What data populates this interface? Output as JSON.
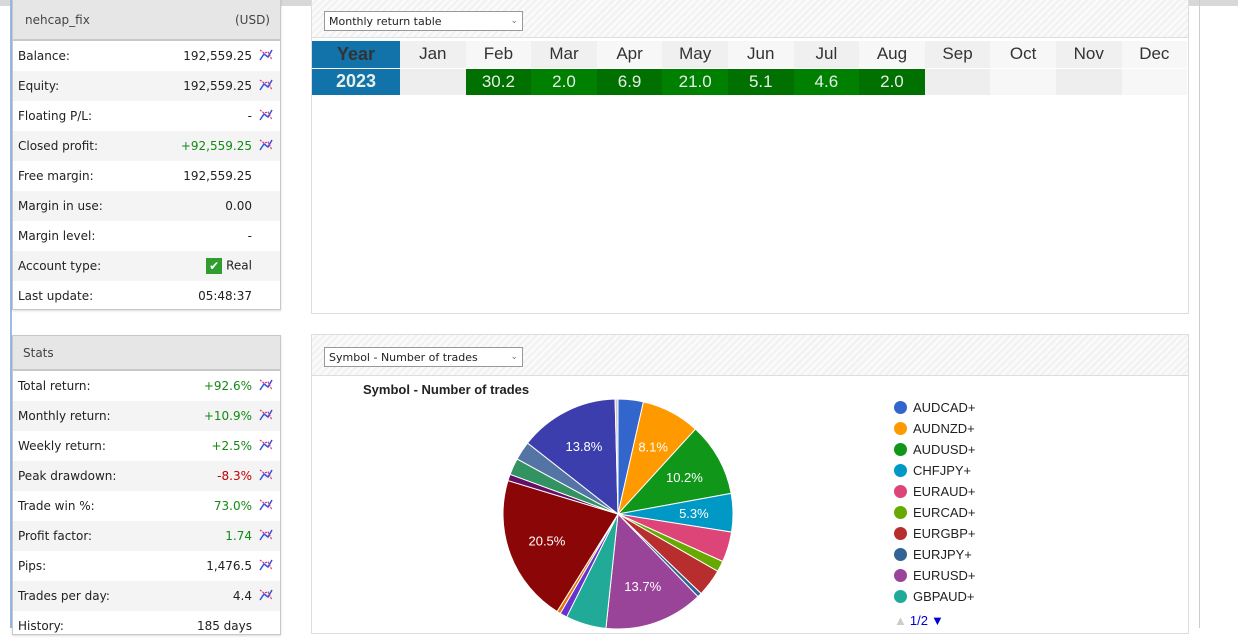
{
  "account": {
    "name": "nehcap_fix",
    "currency": "(USD)",
    "rows": [
      {
        "label": "Balance:",
        "value": "192,559.25",
        "color": "",
        "chart": true
      },
      {
        "label": "Equity:",
        "value": "192,559.25",
        "color": "",
        "chart": true
      },
      {
        "label": "Floating P/L:",
        "value": "-",
        "color": "",
        "chart": true
      },
      {
        "label": "Closed profit:",
        "value": "+92,559.25",
        "color": "green",
        "chart": true
      },
      {
        "label": "Free margin:",
        "value": "192,559.25",
        "color": "",
        "chart": false
      },
      {
        "label": "Margin in use:",
        "value": "0.00",
        "color": "",
        "chart": false
      },
      {
        "label": "Margin level:",
        "value": "-",
        "color": "",
        "chart": false
      },
      {
        "label": "Account type:",
        "value": "Real",
        "color": "",
        "chart": false,
        "check": true
      },
      {
        "label": "Last update:",
        "value": "05:48:37",
        "color": "",
        "chart": false
      }
    ]
  },
  "stats": {
    "title": "Stats",
    "rows": [
      {
        "label": "Total return:",
        "value": "+92.6%",
        "color": "green",
        "chart": true
      },
      {
        "label": "Monthly return:",
        "value": "+10.9%",
        "color": "green",
        "chart": true
      },
      {
        "label": "Weekly return:",
        "value": "+2.5%",
        "color": "green",
        "chart": true
      },
      {
        "label": "Peak drawdown:",
        "value": "-8.3%",
        "color": "red",
        "chart": true
      },
      {
        "label": "Trade win %:",
        "value": "73.0%",
        "color": "green",
        "chart": true
      },
      {
        "label": "Profit factor:",
        "value": "1.74",
        "color": "green",
        "chart": true
      },
      {
        "label": "Pips:",
        "value": "1,476.5",
        "color": "",
        "chart": true
      },
      {
        "label": "Trades per day:",
        "value": "4.4",
        "color": "",
        "chart": true
      },
      {
        "label": "History:",
        "value": "185 days",
        "color": "",
        "chart": false
      }
    ]
  },
  "monthly": {
    "select": "Monthly return table",
    "year_header": "Year",
    "months": [
      "Jan",
      "Feb",
      "Mar",
      "Apr",
      "May",
      "Jun",
      "Jul",
      "Aug",
      "Sep",
      "Oct",
      "Nov",
      "Dec"
    ],
    "rows": [
      {
        "year": "2023",
        "values": [
          "",
          "30.2",
          "2.0",
          "6.9",
          "21.0",
          "5.1",
          "4.6",
          "2.0",
          "",
          "",
          "",
          ""
        ]
      }
    ]
  },
  "pie": {
    "select": "Symbol - Number of trades",
    "pager": "1/2",
    "chart_data": {
      "type": "pie",
      "title": "Symbol - Number of trades",
      "slices": [
        {
          "name": "AUDCAD+",
          "value": 3.5,
          "color": "#3366cc",
          "label": ""
        },
        {
          "name": "AUDNZD+",
          "value": 8.1,
          "color": "#ff9900",
          "label": "8.1%"
        },
        {
          "name": "AUDUSD+",
          "value": 10.2,
          "color": "#109618",
          "label": "10.2%"
        },
        {
          "name": "CHFJPY+",
          "value": 5.3,
          "color": "#0099c6",
          "label": "5.3%"
        },
        {
          "name": "EURAUD+",
          "value": 4.2,
          "color": "#dd4477",
          "label": ""
        },
        {
          "name": "EURCAD+",
          "value": 1.5,
          "color": "#66aa00",
          "label": ""
        },
        {
          "name": "EURGBP+",
          "value": 3.8,
          "color": "#b82e2e",
          "label": ""
        },
        {
          "name": "EURJPY+",
          "value": 0.6,
          "color": "#316395",
          "label": ""
        },
        {
          "name": "EURUSD+",
          "value": 13.7,
          "color": "#994499",
          "label": "13.7%"
        },
        {
          "name": "GBPAUD+",
          "value": 5.6,
          "color": "#22aa99",
          "label": ""
        },
        {
          "name": "",
          "value": 1.0,
          "color": "#6633cc",
          "label": ""
        },
        {
          "name": "",
          "value": 0.5,
          "color": "#e67300",
          "label": ""
        },
        {
          "name": "",
          "value": 20.5,
          "color": "#8b0707",
          "label": "20.5%"
        },
        {
          "name": "",
          "value": 0.9,
          "color": "#651067",
          "label": ""
        },
        {
          "name": "",
          "value": 2.3,
          "color": "#329262",
          "label": ""
        },
        {
          "name": "",
          "value": 2.6,
          "color": "#5574a6",
          "label": ""
        },
        {
          "name": "",
          "value": 13.8,
          "color": "#3b3eac",
          "label": "13.8%"
        },
        {
          "name": "",
          "value": 0.4,
          "color": "#cccccc",
          "label": ""
        }
      ]
    }
  }
}
